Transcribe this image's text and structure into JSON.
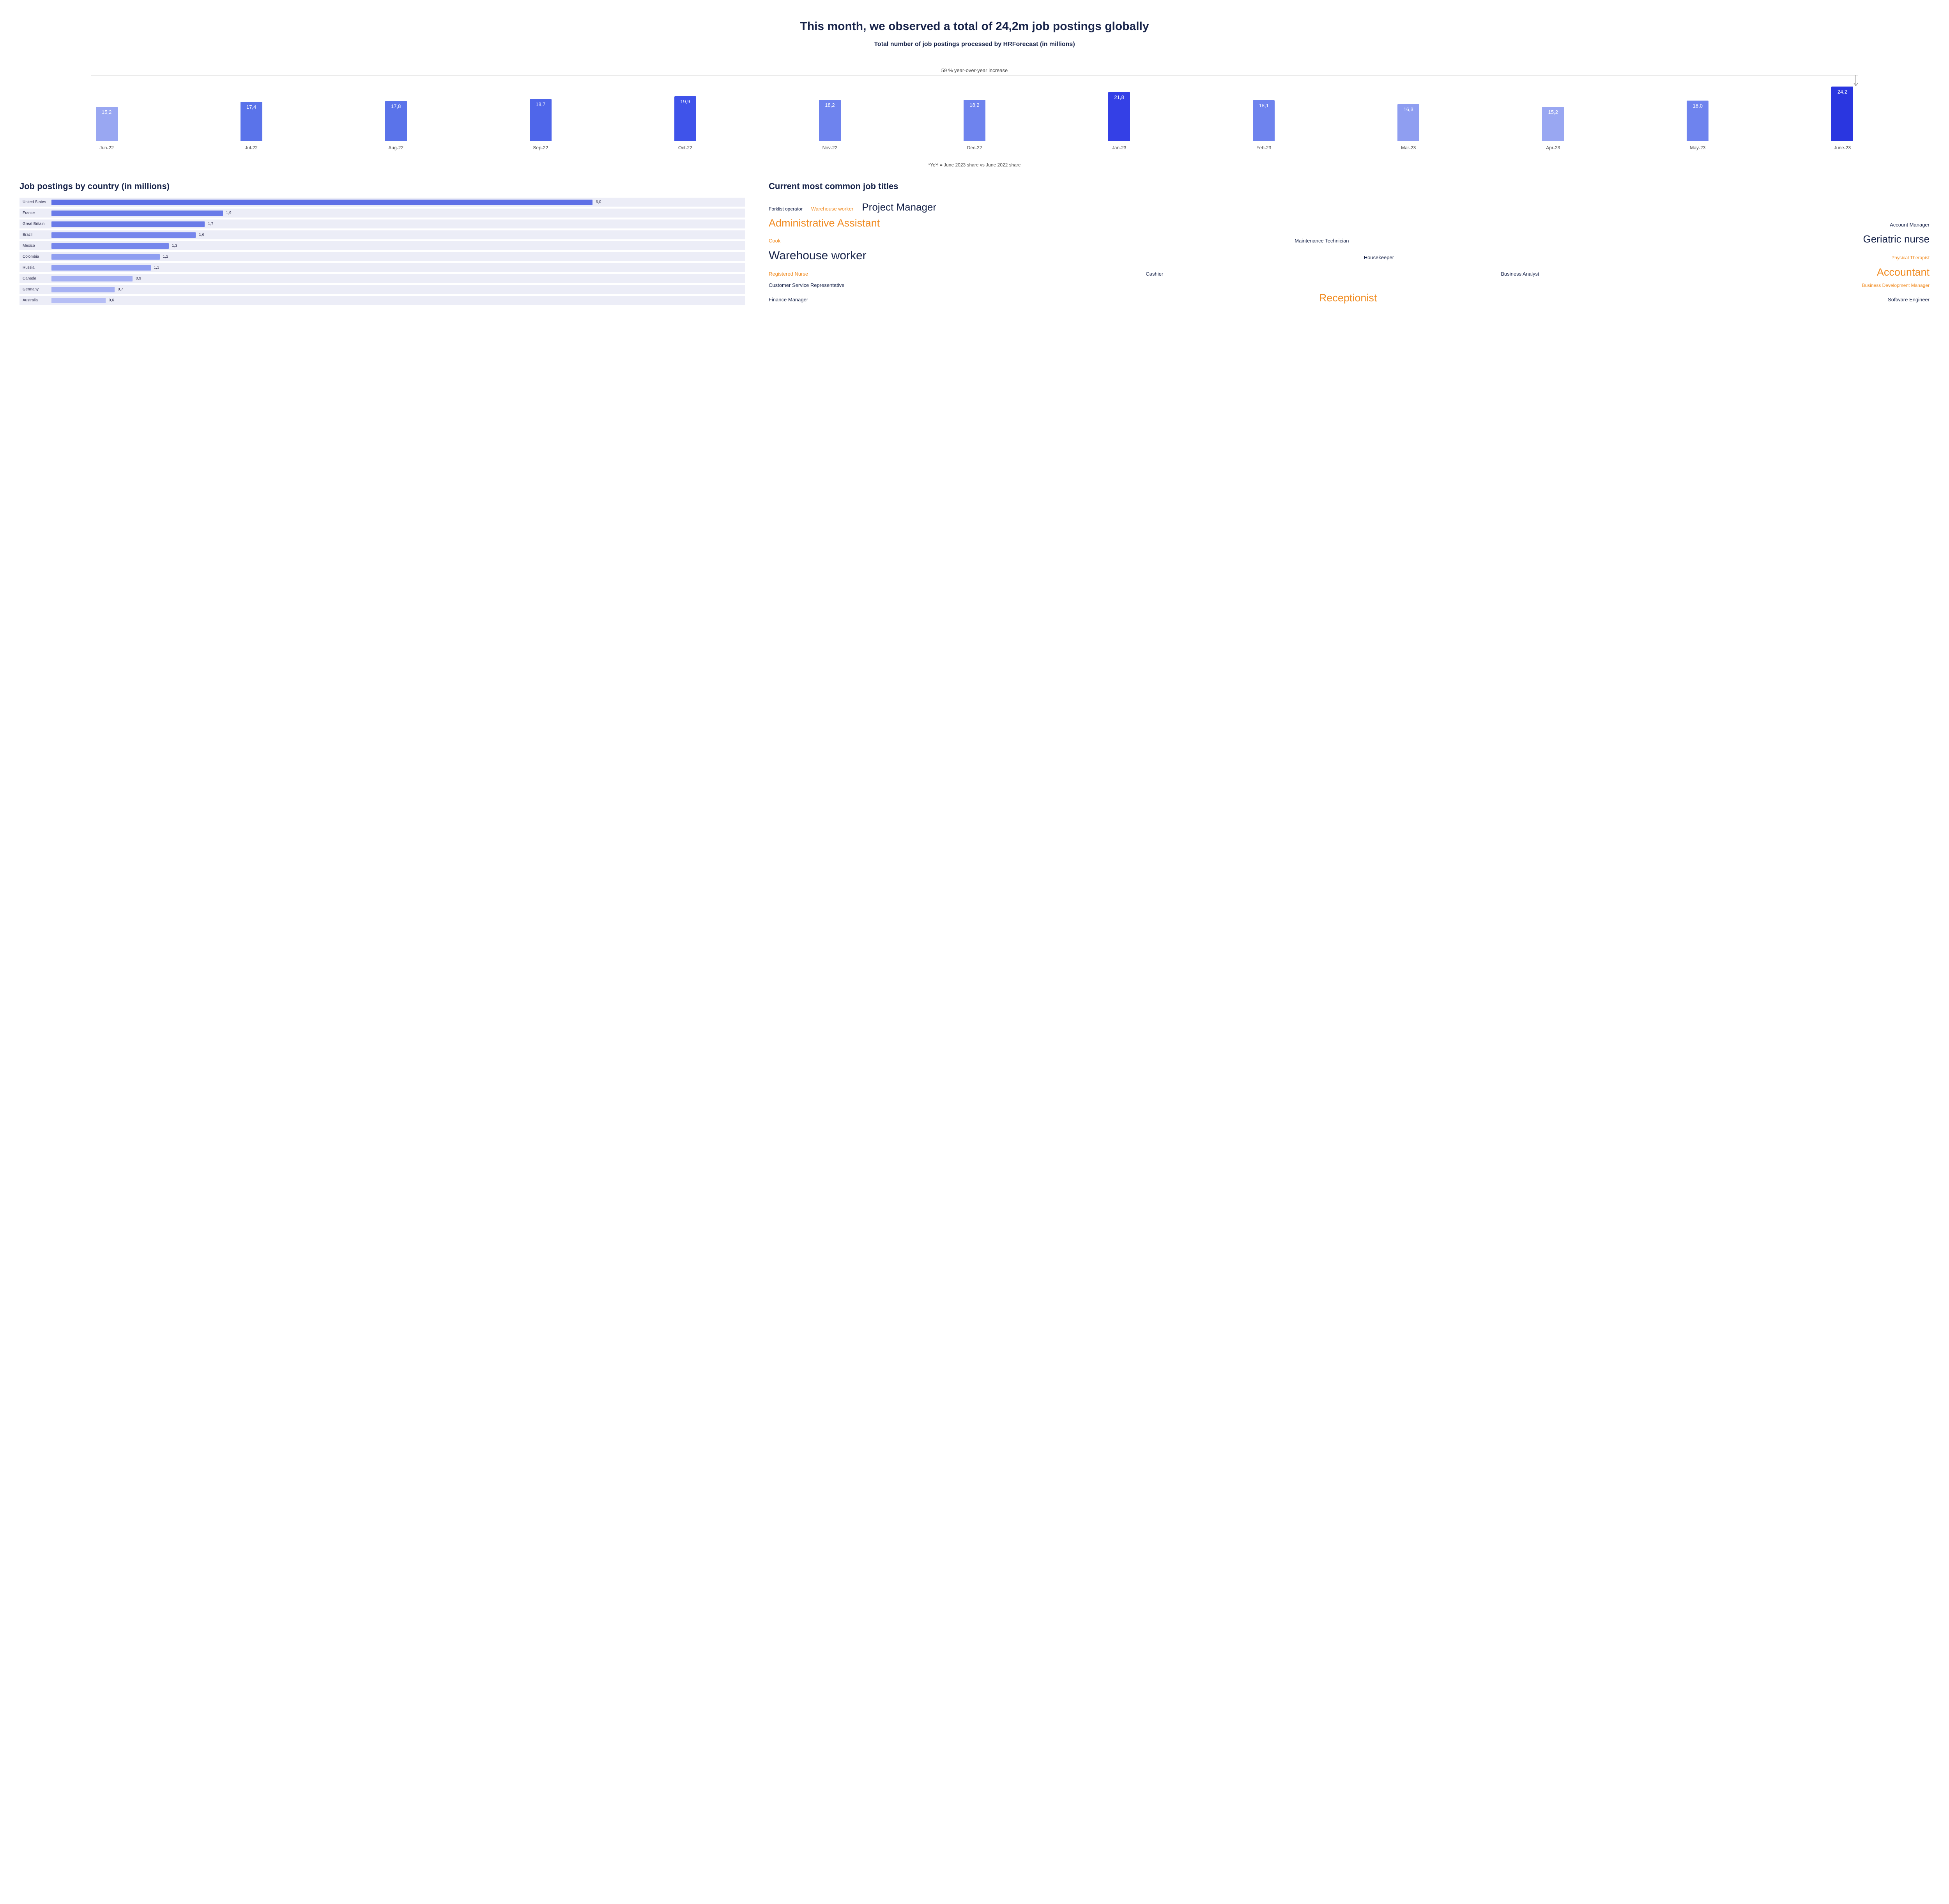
{
  "colors": {
    "text_dark": "#18244a",
    "text_gray": "#4a4a4a",
    "orange": "#f08a1f",
    "row_bg": "#ecedf7"
  },
  "headline": "This month, we observed a total of 24,2m job postings globally",
  "subtitle": "Total number of job postings processed by HRForecast (in millions)",
  "yoy_label": "59 % year-over-year increase",
  "footnote": "*YoY = June 2023 share vs June 2022 share",
  "monthly_chart": {
    "max_value": 24.2,
    "bars": [
      {
        "label": "Jun-22",
        "value_text": "15,2",
        "value": 15.2,
        "color": "#99a7f2"
      },
      {
        "label": "Jul-22",
        "value_text": "17,4",
        "value": 17.4,
        "color": "#5a73ea"
      },
      {
        "label": "Aug-22",
        "value_text": "17,8",
        "value": 17.8,
        "color": "#5a73ea"
      },
      {
        "label": "Sep-22",
        "value_text": "18,7",
        "value": 18.7,
        "color": "#4f66ea"
      },
      {
        "label": "Oct-22",
        "value_text": "19,9",
        "value": 19.9,
        "color": "#3f53ea"
      },
      {
        "label": "Nov-22",
        "value_text": "18,2",
        "value": 18.2,
        "color": "#6e83ee"
      },
      {
        "label": "Dec-22",
        "value_text": "18,2",
        "value": 18.2,
        "color": "#6e83ee"
      },
      {
        "label": "Jan-23",
        "value_text": "21,8",
        "value": 21.8,
        "color": "#3440e6"
      },
      {
        "label": "Feb-23",
        "value_text": "18,1",
        "value": 18.1,
        "color": "#6e83ee"
      },
      {
        "label": "Mar-23",
        "value_text": "16,3",
        "value": 16.3,
        "color": "#8f9ef1"
      },
      {
        "label": "Apr-23",
        "value_text": "15,2",
        "value": 15.2,
        "color": "#99a7f2"
      },
      {
        "label": "May-23",
        "value_text": "18,0",
        "value": 18.0,
        "color": "#6e83ee"
      },
      {
        "label": "June-23",
        "value_text": "24,2",
        "value": 24.2,
        "color": "#2a36e0"
      }
    ]
  },
  "country_title": "Job postings by country (in millions)",
  "country_chart": {
    "max_value": 6.0,
    "bar_color_primary": "#5f70e6",
    "bar_color_light": "#8f9ef1",
    "rows": [
      {
        "name": "United States",
        "value_text": "6,0",
        "value": 6.0,
        "color": "#5f70e6"
      },
      {
        "name": "France",
        "value_text": "1,9",
        "value": 1.9,
        "color": "#6a7be8"
      },
      {
        "name": "Great Britain",
        "value_text": "1,7",
        "value": 1.7,
        "color": "#6a7be8"
      },
      {
        "name": "Brazil",
        "value_text": "1,6",
        "value": 1.6,
        "color": "#7686ec"
      },
      {
        "name": "Mexico",
        "value_text": "1,3",
        "value": 1.3,
        "color": "#7686ec"
      },
      {
        "name": "Colombia",
        "value_text": "1,2",
        "value": 1.2,
        "color": "#8f9ef1"
      },
      {
        "name": "Russia",
        "value_text": "1,1",
        "value": 1.1,
        "color": "#8f9ef1"
      },
      {
        "name": "Canada",
        "value_text": "0,9",
        "value": 0.9,
        "color": "#a6b1f3"
      },
      {
        "name": "Germany",
        "value_text": "0,7",
        "value": 0.7,
        "color": "#a6b1f3"
      },
      {
        "name": "Australia",
        "value_text": "0,6",
        "value": 0.6,
        "color": "#b6bef5"
      }
    ]
  },
  "cloud_title": "Current most common job titles",
  "word_cloud": {
    "rows": [
      [
        {
          "text": "Forklist operator",
          "size": 12,
          "weight": 500,
          "color": "#18244a"
        },
        {
          "text": "Warehouse worker",
          "size": 13,
          "weight": 500,
          "color": "#f08a1f"
        },
        {
          "text": "Project Manager",
          "size": 26,
          "weight": 500,
          "color": "#18244a"
        }
      ],
      [
        {
          "text": "Administrative Assistant",
          "size": 27,
          "weight": 500,
          "color": "#f08a1f"
        },
        {
          "text": "Account Manager",
          "size": 13,
          "weight": 500,
          "color": "#18244a"
        }
      ],
      [
        {
          "text": "Cook",
          "size": 13,
          "weight": 500,
          "color": "#f08a1f"
        },
        {
          "text": "Maintenance Technician",
          "size": 13,
          "weight": 500,
          "color": "#18244a"
        },
        {
          "text": "Geriatric nurse",
          "size": 26,
          "weight": 500,
          "color": "#18244a"
        }
      ],
      [
        {
          "text": "Warehouse worker",
          "size": 30,
          "weight": 500,
          "color": "#18244a"
        },
        {
          "text": "Housekeeper",
          "size": 13,
          "weight": 500,
          "color": "#18244a"
        },
        {
          "text": "Physical Therapist",
          "size": 12,
          "weight": 500,
          "color": "#f08a1f"
        }
      ],
      [
        {
          "text": "Registered Nurse",
          "size": 13,
          "weight": 500,
          "color": "#f08a1f"
        },
        {
          "text": "Cashier",
          "size": 13,
          "weight": 500,
          "color": "#18244a"
        },
        {
          "text": "Business Analyst",
          "size": 13,
          "weight": 500,
          "color": "#18244a"
        },
        {
          "text": "Accountant",
          "size": 27,
          "weight": 500,
          "color": "#f08a1f"
        }
      ],
      [
        {
          "text": "Customer Service Representative",
          "size": 13,
          "weight": 500,
          "color": "#18244a"
        },
        {
          "text": "Business Development Manager",
          "size": 12,
          "weight": 500,
          "color": "#f08a1f"
        }
      ],
      [
        {
          "text": "Finance Manager",
          "size": 13,
          "weight": 500,
          "color": "#18244a"
        },
        {
          "text": "Receptionist",
          "size": 27,
          "weight": 500,
          "color": "#f08a1f"
        },
        {
          "text": "Software Engineer",
          "size": 13,
          "weight": 500,
          "color": "#18244a"
        }
      ]
    ],
    "row_justify": [
      "flex-start",
      "space-between",
      "space-between",
      "space-between",
      "space-between",
      "space-between",
      "space-between"
    ]
  }
}
